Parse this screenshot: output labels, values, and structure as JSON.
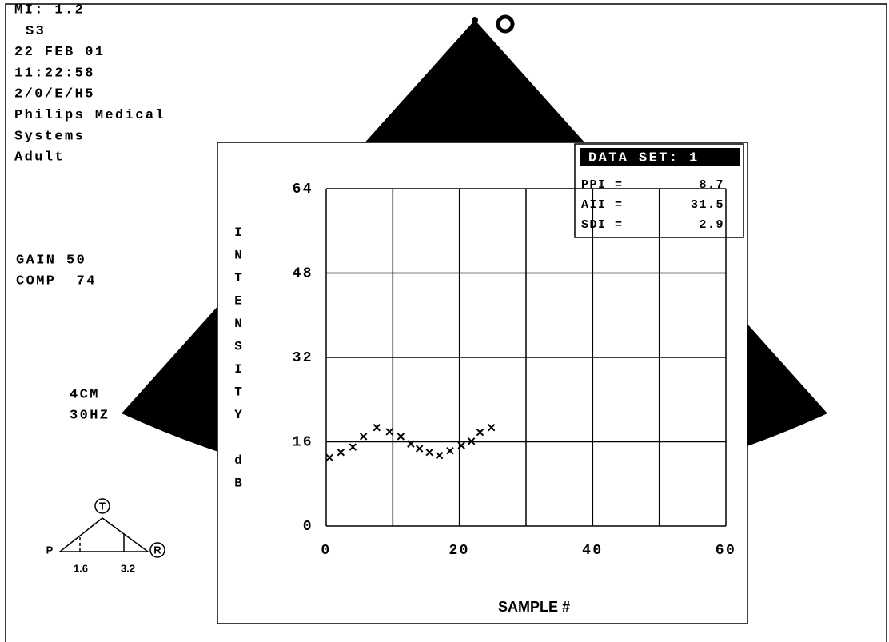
{
  "header": {
    "lines": [
      "MI: 1.2",
      "S3",
      "22 FEB 01",
      "11:22:58",
      "2/0/E/H5",
      "Philips Medical",
      "Systems",
      "Adult"
    ]
  },
  "settings": {
    "gain": "GAIN 50",
    "comp": "COMP  74",
    "depth": "4CM",
    "frame_rate": "30HZ"
  },
  "probe_diagram": {
    "top": "T",
    "left": "P",
    "right": "R",
    "marks": [
      "1.6",
      "3.2"
    ]
  },
  "data_set": {
    "title": "DATA SET: 1",
    "rows": [
      {
        "label": "PPI =",
        "value": 8.7
      },
      {
        "label": "AII =",
        "value": 31.5
      },
      {
        "label": "SDI =",
        "value": 2.9
      }
    ]
  },
  "chart_data": {
    "type": "scatter",
    "x_label": "SAMPLE #",
    "y_label": "INTENSITY dB",
    "x": [
      0.5,
      2.2,
      4,
      5.6,
      7.6,
      9.5,
      11.2,
      12.7,
      14,
      15.5,
      17,
      18.6,
      20.3,
      21.8,
      23.1,
      24.8
    ],
    "y": [
      13.0,
      14.0,
      15.0,
      17.0,
      18.7,
      17.9,
      17.0,
      15.6,
      14.7,
      14.0,
      13.4,
      14.3,
      15.3,
      16.1,
      17.8,
      18.7
    ],
    "color": "#000000",
    "xlim": [
      0,
      60
    ],
    "ylim": [
      0,
      64
    ],
    "xticks": [
      0,
      20,
      40,
      60
    ],
    "xminor": [
      10,
      30,
      50
    ],
    "yticks": [
      0,
      16,
      32,
      48,
      64
    ],
    "grid": true
  }
}
